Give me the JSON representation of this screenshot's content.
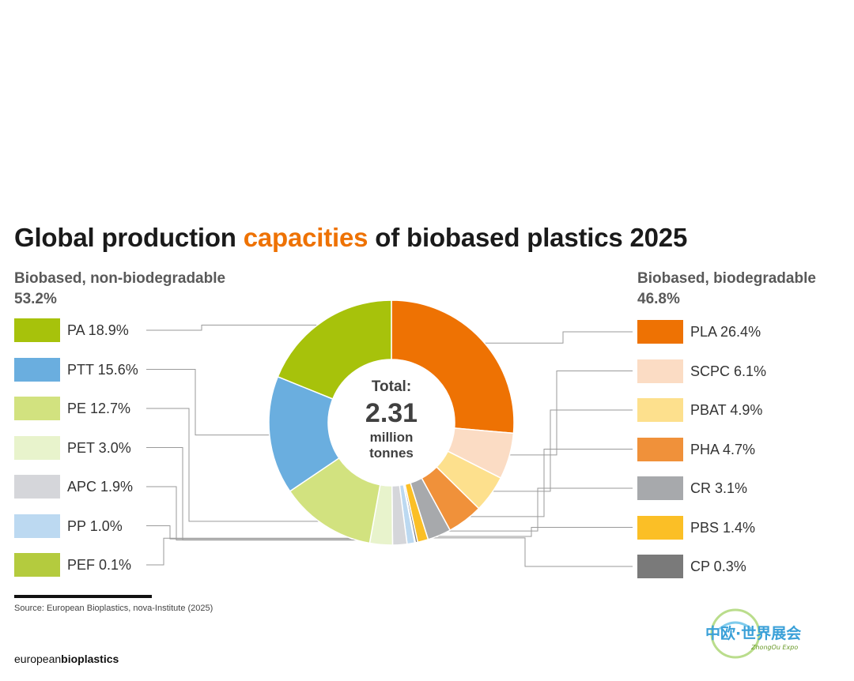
{
  "chart_data": {
    "type": "donut",
    "title_before": "Global production ",
    "title_accent": "capacities",
    "title_after": " of biobased plastics 2025",
    "center": {
      "label": "Total:",
      "value": "2.31",
      "unit_line1": "million",
      "unit_line2": "tonnes"
    },
    "groups": [
      {
        "name": "Biobased, non-biodegradable",
        "share": "53.2%"
      },
      {
        "name": "Biobased, biodegradable",
        "share": "46.8%"
      }
    ],
    "slices": [
      {
        "label": "PLA",
        "value": 26.4,
        "display": "PLA 26.4%",
        "color": "#ee7203",
        "group": 1
      },
      {
        "label": "SCPC",
        "value": 6.1,
        "display": "SCPC 6.1%",
        "color": "#fbdcc4",
        "group": 1
      },
      {
        "label": "PBAT",
        "value": 4.9,
        "display": "PBAT 4.9%",
        "color": "#fde08d",
        "group": 1
      },
      {
        "label": "PHA",
        "value": 4.7,
        "display": "PHA 4.7%",
        "color": "#f0913a",
        "group": 1
      },
      {
        "label": "CR",
        "value": 3.1,
        "display": "CR 3.1%",
        "color": "#a7a9ac",
        "group": 1
      },
      {
        "label": "PBS",
        "value": 1.4,
        "display": "PBS 1.4%",
        "color": "#fbbf26",
        "group": 1
      },
      {
        "label": "CP",
        "value": 0.3,
        "display": "CP 0.3%",
        "color": "#7a7a7a",
        "group": 1
      },
      {
        "label": "PEF",
        "value": 0.1,
        "display": "PEF 0.1%",
        "color": "#b4cb3e",
        "group": 0
      },
      {
        "label": "PP",
        "value": 1.0,
        "display": "PP 1.0%",
        "color": "#bcd9f1",
        "group": 0
      },
      {
        "label": "APC",
        "value": 1.9,
        "display": "APC 1.9%",
        "color": "#d5d6da",
        "group": 0
      },
      {
        "label": "PET",
        "value": 3.0,
        "display": "PET 3.0%",
        "color": "#e8f3cc",
        "group": 0
      },
      {
        "label": "PE",
        "value": 12.7,
        "display": "PE 12.7%",
        "color": "#d2e27f",
        "group": 0
      },
      {
        "label": "PTT",
        "value": 15.6,
        "display": "PTT 15.6%",
        "color": "#6aaedf",
        "group": 0
      },
      {
        "label": "PA",
        "value": 18.9,
        "display": "PA 18.9%",
        "color": "#a7c20b",
        "group": 0
      }
    ]
  },
  "footer": {
    "source": "Source: European Bioplastics, nova-Institute (2025)",
    "brand_regular": "european",
    "brand_bold": "bioplastics"
  },
  "watermark": {
    "text": "中欧·世界展会",
    "sub": "ZhongOu Expo"
  }
}
